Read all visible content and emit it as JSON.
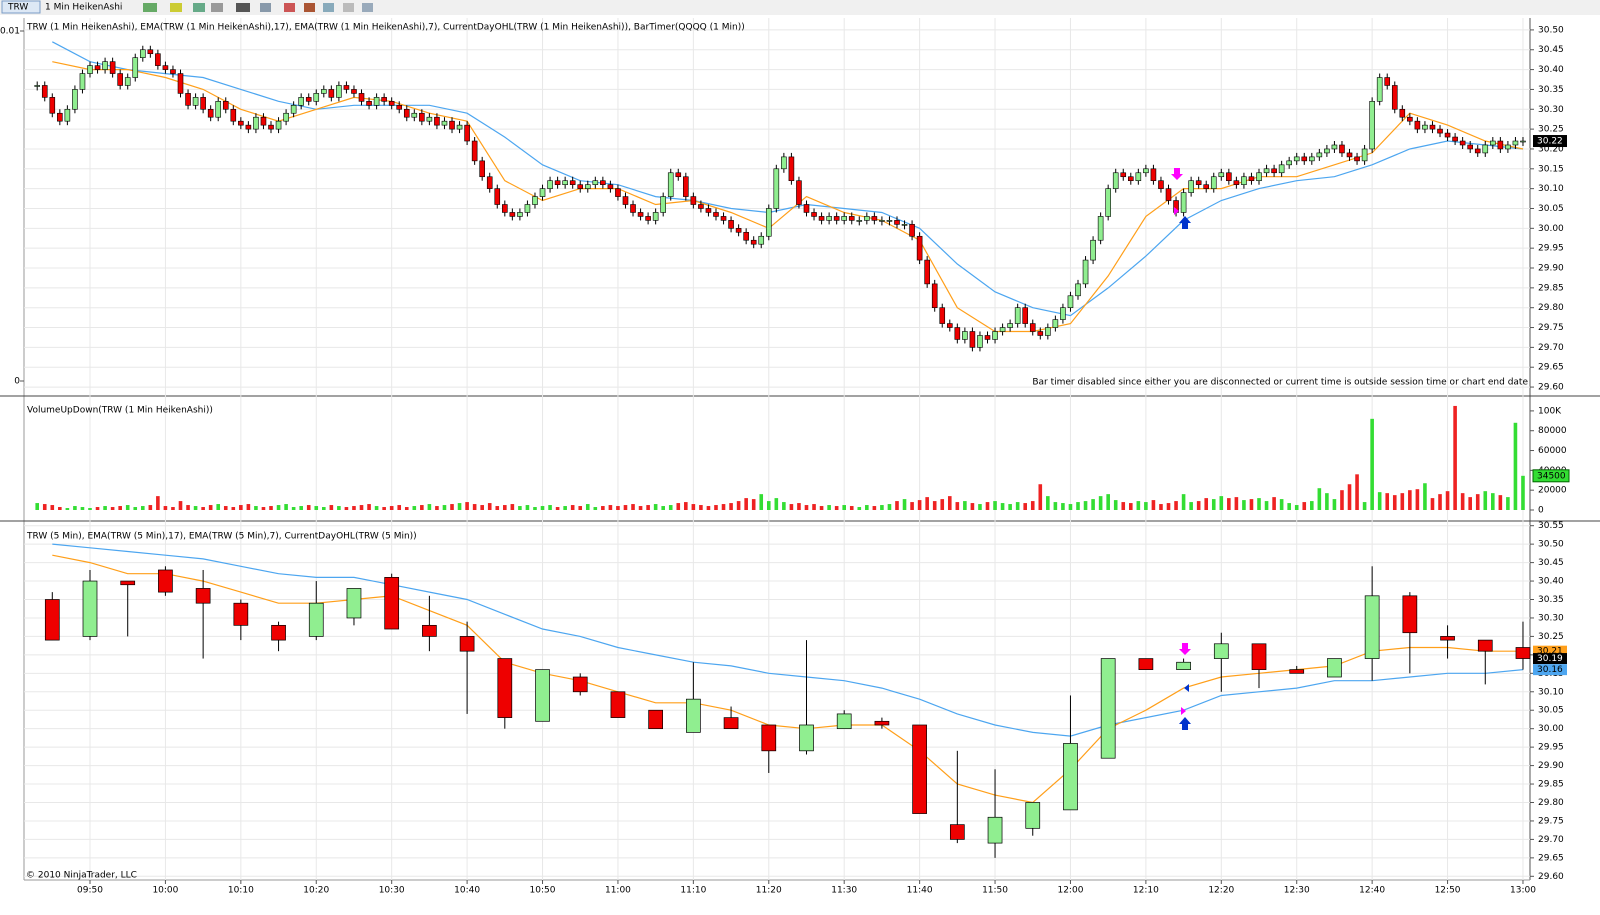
{
  "toolbar": {
    "symbol": "TRW",
    "period": "1 Min HeikenAshi"
  },
  "footer": "© 2010 NinjaTrader, LLC",
  "chart_data": [
    {
      "type": "candle",
      "title": "TRW (1 Min HeikenAshi), EMA(TRW (1 Min HeikenAshi),17), EMA(TRW (1 Min HeikenAshi),7), CurrentDayOHL(TRW (1 Min HeikenAshi)), BarTimer(QQQQ (1 Min))",
      "note": "Bar timer disabled since either you are disconnected or current time is outside session time or chart end date",
      "close": [
        30.36,
        30.33,
        30.29,
        30.27,
        30.3,
        30.35,
        30.39,
        30.41,
        30.4,
        30.42,
        30.39,
        30.36,
        30.38,
        30.43,
        30.45,
        30.44,
        30.41,
        30.4,
        30.39,
        30.34,
        30.31,
        30.33,
        30.3,
        30.28,
        30.32,
        30.3,
        30.27,
        30.26,
        30.25,
        30.28,
        30.26,
        30.25,
        30.27,
        30.29,
        30.31,
        30.33,
        30.32,
        30.34,
        30.35,
        30.33,
        30.36,
        30.35,
        30.34,
        30.32,
        30.31,
        30.33,
        30.32,
        30.31,
        30.3,
        30.28,
        30.29,
        30.27,
        30.28,
        30.26,
        30.27,
        30.25,
        30.26,
        30.22,
        30.17,
        30.13,
        30.1,
        30.06,
        30.04,
        30.03,
        30.04,
        30.06,
        30.08,
        30.1,
        30.12,
        30.11,
        30.12,
        30.11,
        30.1,
        30.11,
        30.12,
        30.11,
        30.1,
        30.08,
        30.06,
        30.04,
        30.03,
        30.02,
        30.04,
        30.08,
        30.14,
        30.13,
        30.08,
        30.06,
        30.05,
        30.04,
        30.03,
        30.02,
        30.0,
        29.99,
        29.97,
        29.96,
        29.98,
        30.05,
        30.15,
        30.18,
        30.12,
        30.06,
        30.04,
        30.03,
        30.02,
        30.03,
        30.02,
        30.03,
        30.02,
        30.02,
        30.03,
        30.02,
        30.02,
        30.02,
        30.01,
        30.01,
        29.98,
        29.92,
        29.86,
        29.8,
        29.76,
        29.75,
        29.72,
        29.74,
        29.7,
        29.73,
        29.72,
        29.74,
        29.75,
        29.76,
        29.8,
        29.76,
        29.74,
        29.73,
        29.75,
        29.77,
        29.8,
        29.83,
        29.86,
        29.92,
        29.97,
        30.03,
        30.1,
        30.14,
        30.13,
        30.12,
        30.14,
        30.15,
        30.12,
        30.1,
        30.07,
        30.04,
        30.09,
        30.12,
        30.11,
        30.1,
        30.13,
        30.14,
        30.12,
        30.11,
        30.13,
        30.12,
        30.14,
        30.15,
        30.14,
        30.16,
        30.17,
        30.18,
        30.17,
        30.18,
        30.19,
        30.2,
        30.21,
        30.19,
        30.18,
        30.17,
        30.2,
        30.32,
        30.38,
        30.36,
        30.3,
        30.28,
        30.27,
        30.25,
        30.26,
        30.25,
        30.24,
        30.23,
        30.22,
        30.21,
        30.2,
        30.19,
        30.21,
        30.22,
        30.2,
        30.21,
        30.22,
        30.22
      ],
      "lines": [
        {
          "color": "#4da6f0",
          "values": [
            30.47,
            30.42,
            30.4,
            30.39,
            30.38,
            30.35,
            30.32,
            30.3,
            30.31,
            30.31,
            30.31,
            30.29,
            30.23,
            30.16,
            30.12,
            30.11,
            30.08,
            30.07,
            30.05,
            30.04,
            30.06,
            30.05,
            30.04,
            30.0,
            29.91,
            29.84,
            29.8,
            29.78,
            29.85,
            29.93,
            30.02,
            30.07,
            30.1,
            30.12,
            30.13,
            30.16,
            30.2,
            30.22,
            30.21,
            30.2
          ]
        },
        {
          "color": "#ff9f1a",
          "values": [
            30.42,
            30.4,
            30.4,
            30.38,
            30.35,
            30.3,
            30.27,
            30.3,
            30.33,
            30.32,
            30.29,
            30.27,
            30.12,
            30.07,
            30.1,
            30.1,
            30.06,
            30.07,
            30.04,
            30.0,
            30.08,
            30.04,
            30.02,
            29.97,
            29.8,
            29.74,
            29.74,
            29.76,
            29.88,
            30.03,
            30.1,
            30.1,
            30.13,
            30.13,
            30.16,
            30.19,
            30.29,
            30.26,
            30.22,
            30.2
          ]
        }
      ],
      "up_color": "#90ee90",
      "down_color": "#ee0000",
      "ylim": [
        29.58,
        30.53
      ],
      "yticks": [
        {
          "value": 29.6,
          "label": "29.60"
        },
        29.65,
        {
          "value": 29.7,
          "label": "29.70"
        },
        29.75,
        {
          "value": 29.8,
          "label": "29.80"
        },
        29.85,
        {
          "value": 29.9,
          "label": "29.90"
        },
        29.95,
        {
          "value": 30,
          "label": "30.00"
        },
        30.05,
        {
          "value": 30.1,
          "label": "30.10"
        },
        30.15,
        {
          "value": 30.2,
          "label": "30.20"
        },
        30.25,
        {
          "value": 30.3,
          "label": "30.30"
        },
        30.35,
        {
          "value": 30.4,
          "label": "30.40"
        },
        30.45,
        {
          "value": 30.5,
          "label": "30.50"
        }
      ],
      "y2lim": [
        0,
        0.01
      ],
      "y2ticks": [
        0,
        0.01
      ],
      "grid": true
    },
    {
      "type": "bar",
      "title": "VolumeUpDown(TRW (1 Min HeikenAshi))",
      "values": [
        7000,
        6000,
        5000,
        3000,
        2000,
        4000,
        3000,
        2000,
        3000,
        4000,
        3000,
        4000,
        5000,
        3000,
        4000,
        5000,
        14000,
        4000,
        3000,
        9000,
        5000,
        4000,
        3000,
        5000,
        6000,
        4000,
        3000,
        5000,
        6000,
        4000,
        3000,
        4000,
        5000,
        6000,
        3000,
        4000,
        5000,
        4000,
        3000,
        5000,
        4000,
        3000,
        4000,
        5000,
        6000,
        4000,
        3000,
        4000,
        5000,
        3000,
        4000,
        5000,
        6000,
        4000,
        5000,
        6000,
        7000,
        8000,
        6000,
        5000,
        7000,
        4000,
        5000,
        6000,
        4000,
        5000,
        3000,
        4000,
        5000,
        3000,
        4000,
        5000,
        4000,
        6000,
        3000,
        4000,
        5000,
        4000,
        5000,
        6000,
        4000,
        5000,
        6000,
        4000,
        5000,
        7000,
        8000,
        6000,
        5000,
        4000,
        5000,
        6000,
        7000,
        9000,
        12000,
        11000,
        16000,
        9000,
        12000,
        8000,
        6000,
        7000,
        5000,
        6000,
        4000,
        5000,
        4000,
        5000,
        4000,
        3000,
        5000,
        4000,
        5000,
        6000,
        9000,
        11000,
        8000,
        10000,
        13000,
        9000,
        11000,
        14000,
        8000,
        9000,
        7000,
        6000,
        8000,
        9000,
        7000,
        6000,
        8000,
        7000,
        9000,
        26000,
        14000,
        8000,
        7000,
        6000,
        8000,
        9000,
        11000,
        14000,
        16000,
        10000,
        8000,
        7000,
        9000,
        8000,
        10000,
        6000,
        7000,
        9000,
        16000,
        8000,
        9000,
        12000,
        11000,
        14000,
        12000,
        13000,
        10000,
        11000,
        12000,
        9000,
        13000,
        11000,
        7000,
        5000,
        8000,
        9000,
        22000,
        17000,
        11000,
        20000,
        26000,
        36000,
        8000,
        92000,
        18000,
        17000,
        15000,
        17000,
        20000,
        21000,
        27000,
        12000,
        16000,
        19000,
        105000,
        17000,
        13000,
        16000,
        19000,
        17000,
        15000,
        13000,
        88000,
        34500
      ],
      "up_color": "#33dd33",
      "down_color": "#ee2222",
      "ylim": [
        0,
        112000
      ],
      "yticks": [
        0,
        20000,
        40000,
        60000,
        80000,
        {
          "value": 100000,
          "label": "100K"
        }
      ]
    },
    {
      "type": "candlestick",
      "title": "TRW (5 Min), EMA(TRW (5 Min),17), EMA(TRW (5 Min),7), CurrentDayOHL(TRW (5 Min))",
      "open": [
        30.35,
        30.25,
        30.4,
        30.43,
        30.38,
        30.34,
        30.28,
        30.25,
        30.3,
        30.41,
        30.28,
        30.25,
        30.19,
        30.02,
        30.14,
        30.1,
        30.05,
        29.99,
        30.03,
        30.01,
        29.94,
        30.0,
        30.02,
        30.01,
        29.74,
        29.69,
        29.73,
        29.78,
        29.92,
        30.19,
        30.16,
        30.19,
        30.23,
        30.16,
        30.14,
        30.19,
        30.36,
        30.25,
        30.24,
        30.22
      ],
      "high": [
        30.37,
        30.43,
        30.4,
        30.44,
        30.43,
        30.35,
        30.29,
        30.4,
        30.38,
        30.42,
        30.36,
        30.29,
        30.19,
        30.16,
        30.15,
        30.1,
        30.05,
        30.18,
        30.06,
        30.01,
        30.24,
        30.05,
        30.03,
        30.01,
        29.94,
        29.89,
        29.8,
        30.09,
        30.19,
        30.19,
        30.19,
        30.26,
        30.23,
        30.17,
        30.19,
        30.44,
        30.37,
        30.28,
        30.24,
        30.29
      ],
      "low": [
        30.24,
        30.24,
        30.25,
        30.36,
        30.19,
        30.24,
        30.21,
        30.24,
        30.28,
        30.27,
        30.21,
        30.04,
        30.0,
        30.02,
        30.09,
        30.03,
        30.0,
        29.99,
        30.0,
        29.88,
        29.93,
        30.0,
        30.0,
        29.77,
        29.69,
        29.65,
        29.71,
        29.78,
        29.92,
        30.16,
        30.16,
        30.1,
        30.11,
        30.15,
        30.14,
        30.13,
        30.15,
        30.19,
        30.12,
        30.16
      ],
      "close": [
        30.24,
        30.4,
        30.39,
        30.37,
        30.34,
        30.28,
        30.24,
        30.34,
        30.38,
        30.27,
        30.25,
        30.21,
        30.03,
        30.16,
        30.1,
        30.03,
        30.0,
        30.08,
        30.0,
        29.94,
        30.01,
        30.04,
        30.01,
        29.77,
        29.7,
        29.76,
        29.8,
        29.96,
        30.19,
        30.16,
        30.18,
        30.23,
        30.16,
        30.15,
        30.19,
        30.36,
        30.26,
        30.24,
        30.21,
        30.19
      ],
      "lines": [
        {
          "color": "#4da6f0",
          "values": [
            30.5,
            30.49,
            30.48,
            30.47,
            30.46,
            30.44,
            30.42,
            30.41,
            30.41,
            30.39,
            30.37,
            30.35,
            30.31,
            30.27,
            30.25,
            30.22,
            30.2,
            30.18,
            30.17,
            30.15,
            30.14,
            30.13,
            30.11,
            30.08,
            30.04,
            30.01,
            29.99,
            29.98,
            30.01,
            30.03,
            30.05,
            30.09,
            30.1,
            30.11,
            30.13,
            30.13,
            30.14,
            30.15,
            30.15,
            30.16
          ]
        },
        {
          "color": "#ff9f1a",
          "values": [
            30.47,
            30.45,
            30.42,
            30.42,
            30.4,
            30.37,
            30.34,
            30.34,
            30.35,
            30.36,
            30.32,
            30.28,
            30.18,
            30.15,
            30.13,
            30.1,
            30.07,
            30.07,
            30.05,
            30.01,
            30.0,
            30.01,
            30.01,
            29.94,
            29.85,
            29.82,
            29.8,
            29.89,
            30.0,
            30.05,
            30.11,
            30.14,
            30.15,
            30.16,
            30.17,
            30.21,
            30.22,
            30.22,
            30.21,
            30.21
          ]
        }
      ],
      "up_color": "#90ee90",
      "down_color": "#ee0000",
      "ylim": [
        29.59,
        30.56
      ],
      "yticks": [
        {
          "value": 29.6,
          "label": "29.60"
        },
        29.65,
        {
          "value": 29.7,
          "label": "29.70"
        },
        29.75,
        {
          "value": 29.8,
          "label": "29.80"
        },
        29.85,
        {
          "value": 29.9,
          "label": "29.90"
        },
        29.95,
        {
          "value": 30,
          "label": "30.00"
        },
        30.05,
        {
          "value": 30.1,
          "label": "30.10"
        },
        30.15,
        {
          "value": 30.2,
          "label": "30.20"
        },
        30.25,
        {
          "value": 30.3,
          "label": "30.30"
        },
        30.35,
        {
          "value": 30.4,
          "label": "30.40"
        },
        30.45,
        {
          "value": 30.5,
          "label": "30.50"
        },
        30.55
      ],
      "xtick_labels": [
        "09:50",
        "10:00",
        "10:10",
        "10:20",
        "10:30",
        "10:40",
        "10:50",
        "11:00",
        "11:10",
        "11:20",
        "11:30",
        "11:40",
        "11:50",
        "12:00",
        "12:10",
        "12:20",
        "12:30",
        "12:40",
        "12:50",
        "13:00"
      ],
      "grid": true
    }
  ]
}
